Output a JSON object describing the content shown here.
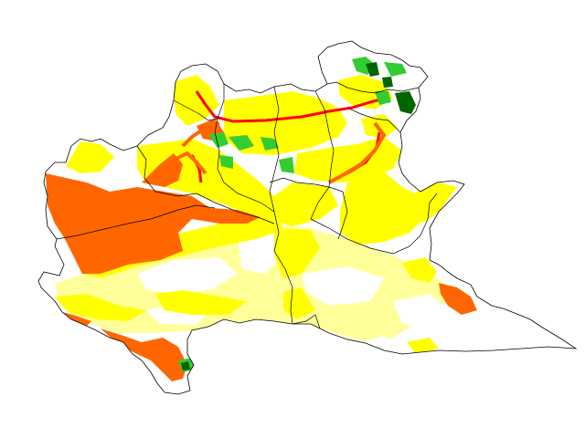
{
  "map": {
    "colors": {
      "background": "#ffffff",
      "boundary": "#000000",
      "orange": "#ff6600",
      "yellow": "#ffff00",
      "pale_yellow": "#ffff99",
      "red": "#ff0000",
      "light_green": "#33cc33",
      "dark_green": "#006600"
    }
  }
}
